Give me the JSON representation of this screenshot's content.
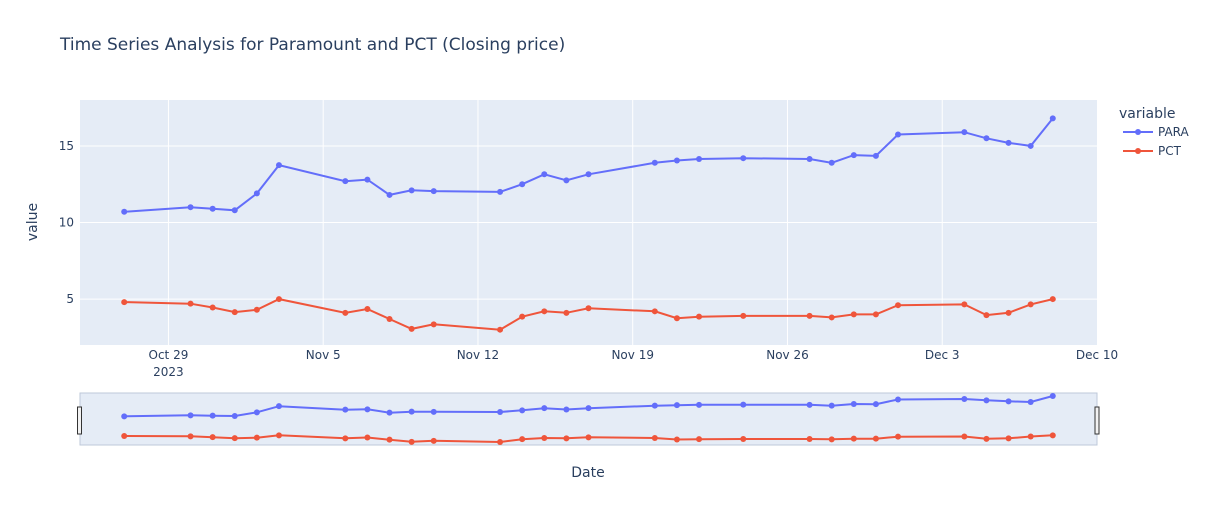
{
  "chart_data": {
    "type": "line",
    "title": "Time Series Analysis for Paramount and PCT (Closing price)",
    "xlabel": "Date",
    "ylabel": "value",
    "legend_title": "variable",
    "legend_position": "right",
    "grid": true,
    "range_slider": true,
    "ylim": [
      2.0,
      18.0
    ],
    "xlim": [
      "2023-10-25",
      "2023-12-10"
    ],
    "y_ticks": [
      "5",
      "10",
      "15"
    ],
    "x_ticks": [
      {
        "date": "2023-10-29",
        "label": "Oct 29",
        "sublabel": "2023"
      },
      {
        "date": "2023-11-05",
        "label": "Nov 5",
        "sublabel": ""
      },
      {
        "date": "2023-11-12",
        "label": "Nov 12",
        "sublabel": ""
      },
      {
        "date": "2023-11-19",
        "label": "Nov 19",
        "sublabel": ""
      },
      {
        "date": "2023-11-26",
        "label": "Nov 26",
        "sublabel": ""
      },
      {
        "date": "2023-12-03",
        "label": "Dec 3",
        "sublabel": ""
      },
      {
        "date": "2023-12-10",
        "label": "Dec 10",
        "sublabel": ""
      }
    ],
    "x": [
      "2023-10-27",
      "2023-10-30",
      "2023-10-31",
      "2023-11-01",
      "2023-11-02",
      "2023-11-03",
      "2023-11-06",
      "2023-11-07",
      "2023-11-08",
      "2023-11-09",
      "2023-11-10",
      "2023-11-13",
      "2023-11-14",
      "2023-11-15",
      "2023-11-16",
      "2023-11-17",
      "2023-11-20",
      "2023-11-21",
      "2023-11-22",
      "2023-11-24",
      "2023-11-27",
      "2023-11-28",
      "2023-11-29",
      "2023-11-30",
      "2023-12-01",
      "2023-12-04",
      "2023-12-05",
      "2023-12-06",
      "2023-12-07",
      "2023-12-08"
    ],
    "series": [
      {
        "name": "PARA",
        "color": "#636efa",
        "values": [
          10.7,
          11.0,
          10.9,
          10.8,
          11.9,
          13.75,
          12.7,
          12.8,
          11.8,
          12.1,
          12.05,
          12.0,
          12.5,
          13.15,
          12.75,
          13.15,
          13.9,
          14.05,
          14.15,
          14.2,
          14.15,
          13.9,
          14.4,
          14.35,
          15.75,
          15.9,
          15.5,
          15.2,
          15.0,
          16.8
        ]
      },
      {
        "name": "PCT",
        "color": "#ef553b",
        "values": [
          4.8,
          4.7,
          4.45,
          4.15,
          4.3,
          5.0,
          4.1,
          4.35,
          3.7,
          3.05,
          3.35,
          3.0,
          3.85,
          4.2,
          4.1,
          4.4,
          4.2,
          3.75,
          3.85,
          3.9,
          3.9,
          3.8,
          4.0,
          4.0,
          4.6,
          4.65,
          3.95,
          4.1,
          4.65,
          5.0
        ]
      }
    ]
  }
}
